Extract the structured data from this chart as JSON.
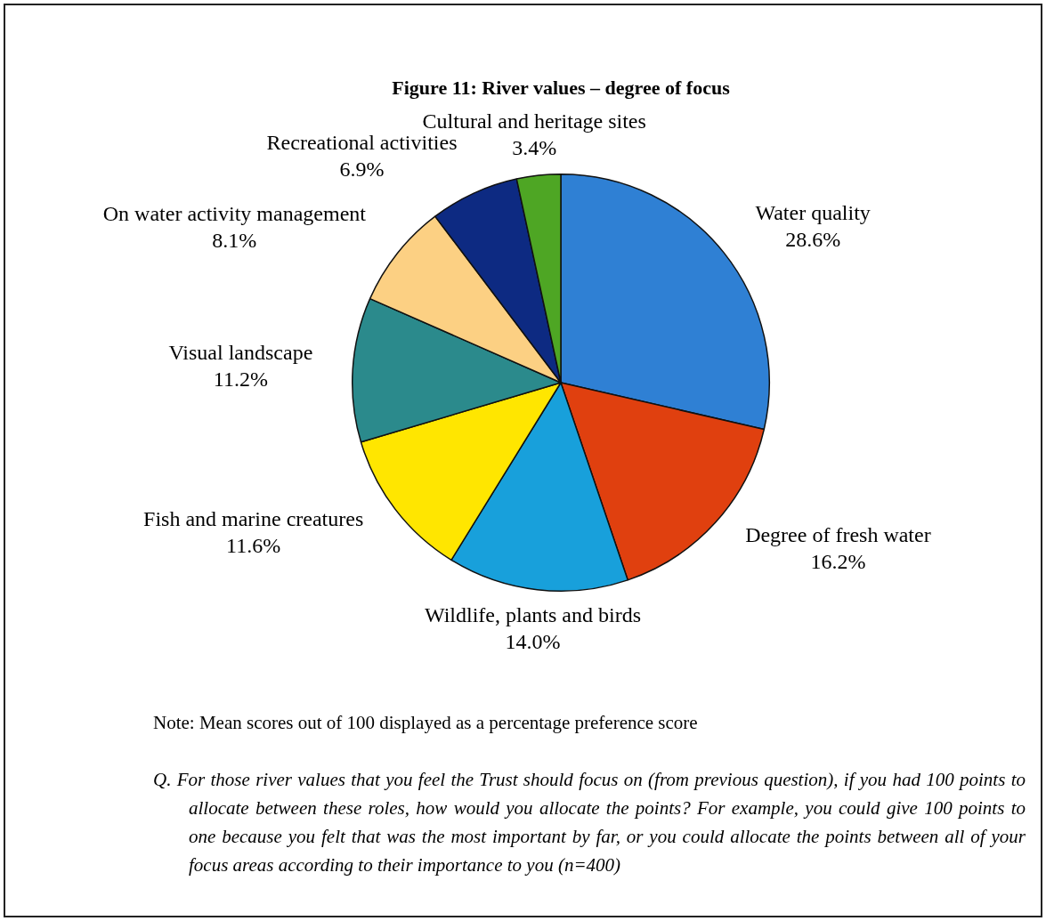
{
  "chart_data": {
    "type": "pie",
    "title": "Figure 11: River values – degree of focus",
    "categories": [
      "Water quality",
      "Degree of fresh water",
      "Wildlife, plants and birds",
      "Fish and marine creatures",
      "Visual landscape",
      "On water activity management",
      "Recreational activities",
      "Cultural and heritage sites"
    ],
    "values": [
      28.6,
      16.2,
      14.0,
      11.6,
      11.2,
      8.1,
      6.9,
      3.4
    ],
    "value_labels": [
      "28.6%",
      "16.2%",
      "14.0%",
      "11.6%",
      "11.2%",
      "8.1%",
      "6.9%",
      "3.4%"
    ],
    "colors": [
      "#2f80d4",
      "#e0400f",
      "#18a0db",
      "#ffe600",
      "#2b8a8c",
      "#fcd083",
      "#0d2a82",
      "#4ea624"
    ],
    "legend": false,
    "annotations": [
      "Note: Mean scores out of 100 displayed as a percentage preference score",
      "Q. For those river values that you feel the Trust should focus on (from previous question), if you had 100 points to allocate between these roles, how would you allocate the points? For example, you could give 100 points to one because you felt that was the most important by far, or you could allocate the points between all of your focus areas according to their importance to you (n=400)"
    ]
  }
}
